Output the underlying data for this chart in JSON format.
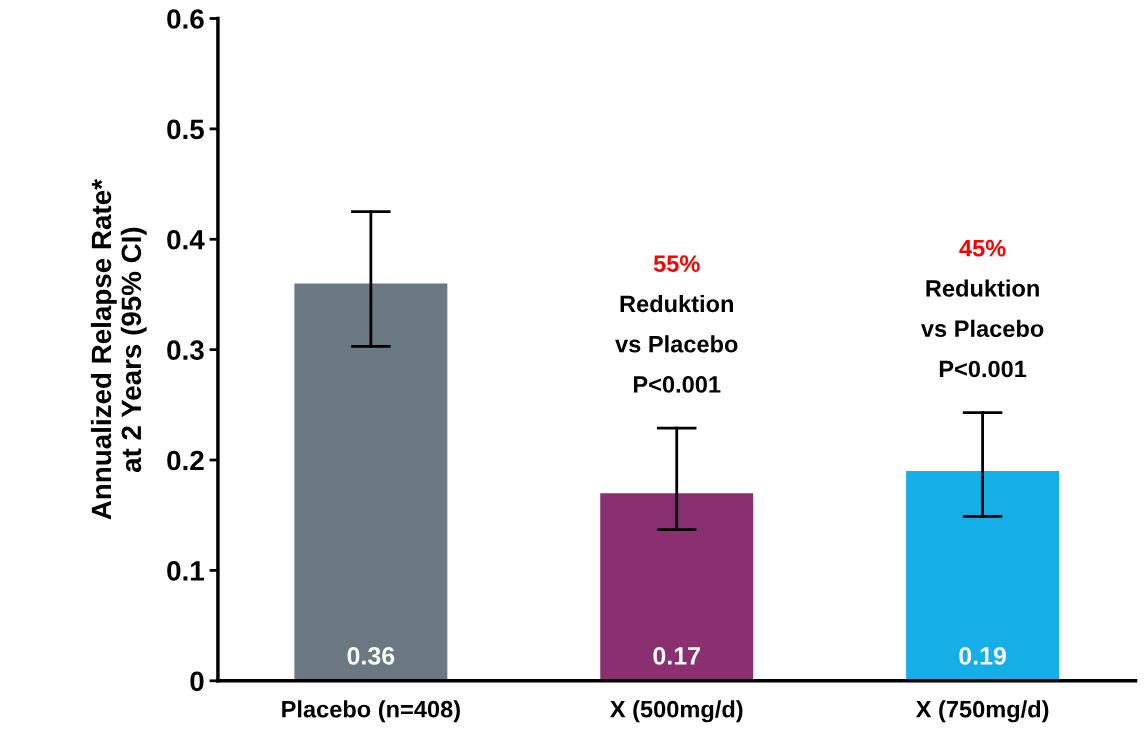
{
  "chart_data": {
    "type": "bar",
    "ylabel": "Annualized Relapse Rate*\nat 2 Years (95% CI)",
    "categories": [
      "Placebo (n=408)",
      "X (500mg/d)",
      "X (750mg/d)"
    ],
    "values": [
      0.36,
      0.17,
      0.19
    ],
    "colors": [
      "#6a7882",
      "#8a2f6f",
      "#15aee6"
    ],
    "errors": [
      [
        0.303,
        0.425
      ],
      [
        0.137,
        0.229
      ],
      [
        0.149,
        0.243
      ]
    ],
    "data_labels": true,
    "annotations": [
      {
        "text": "55%\nReduktion\nvs Placebo\nP<0.001",
        "x": "X (500mg/d)",
        "y": 0.229
      },
      {
        "text": "45%\nReduktion\nvs Placebo\nP<0.001",
        "x": "X (750mg/d)",
        "y": 0.243
      }
    ],
    "ylim": [
      0,
      0.6
    ],
    "yticks": [
      0,
      0.1,
      0.2,
      0.3,
      0.4,
      0.5,
      0.6
    ],
    "grid": false
  }
}
